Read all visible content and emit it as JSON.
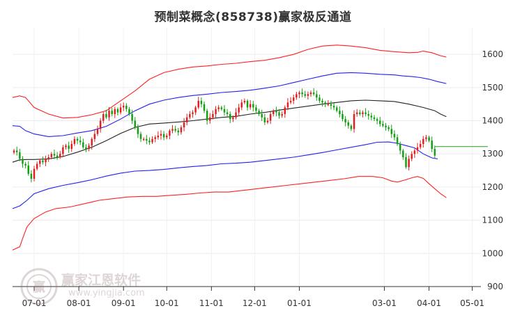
{
  "chart_data": {
    "type": "candlestick",
    "title": "预制菜概念(858738)赢家极反通道",
    "ylim": [
      900,
      1680
    ],
    "y_ticks": [
      900,
      1000,
      1100,
      1200,
      1300,
      1400,
      1500,
      1600
    ],
    "x_ticks": [
      "07-01",
      "08-01",
      "09-01",
      "10-01",
      "11-01",
      "12-01",
      "01-01",
      "03-01",
      "04-01",
      "05-01"
    ],
    "x_tick_days": [
      0,
      31,
      62,
      92,
      123,
      153,
      184,
      243,
      274,
      304
    ],
    "x_range_days": [
      -15,
      310
    ],
    "grid": true,
    "last_value": 1322,
    "colors": {
      "up": "#e02020",
      "down": "#12a012",
      "outer_band": "#ff2020",
      "inner_band": "#2020ee",
      "middle": "#222222",
      "last_line": "#20a020"
    },
    "candles": [
      [
        -14,
        1310
      ],
      [
        -12,
        1305
      ],
      [
        -10,
        1285
      ],
      [
        -8,
        1270
      ],
      [
        -6,
        1265
      ],
      [
        -4,
        1240
      ],
      [
        -2,
        1225
      ],
      [
        0,
        1255
      ],
      [
        2,
        1270
      ],
      [
        4,
        1280
      ],
      [
        6,
        1275
      ],
      [
        8,
        1285
      ],
      [
        10,
        1290
      ],
      [
        12,
        1300
      ],
      [
        14,
        1295
      ],
      [
        16,
        1290
      ],
      [
        18,
        1300
      ],
      [
        20,
        1320
      ],
      [
        22,
        1325
      ],
      [
        24,
        1315
      ],
      [
        26,
        1330
      ],
      [
        28,
        1345
      ],
      [
        30,
        1340
      ],
      [
        32,
        1335
      ],
      [
        34,
        1320
      ],
      [
        36,
        1315
      ],
      [
        38,
        1325
      ],
      [
        40,
        1345
      ],
      [
        42,
        1360
      ],
      [
        44,
        1375
      ],
      [
        46,
        1400
      ],
      [
        48,
        1420
      ],
      [
        50,
        1410
      ],
      [
        52,
        1430
      ],
      [
        54,
        1420
      ],
      [
        56,
        1435
      ],
      [
        58,
        1425
      ],
      [
        60,
        1440
      ],
      [
        62,
        1445
      ],
      [
        64,
        1435
      ],
      [
        66,
        1420
      ],
      [
        68,
        1400
      ],
      [
        70,
        1380
      ],
      [
        72,
        1360
      ],
      [
        74,
        1345
      ],
      [
        76,
        1345
      ],
      [
        78,
        1340
      ],
      [
        80,
        1335
      ],
      [
        82,
        1345
      ],
      [
        84,
        1350
      ],
      [
        86,
        1355
      ],
      [
        88,
        1360
      ],
      [
        90,
        1350
      ],
      [
        92,
        1355
      ],
      [
        94,
        1370
      ],
      [
        96,
        1375
      ],
      [
        98,
        1370
      ],
      [
        100,
        1365
      ],
      [
        102,
        1380
      ],
      [
        104,
        1395
      ],
      [
        106,
        1410
      ],
      [
        108,
        1420
      ],
      [
        110,
        1425
      ],
      [
        112,
        1440
      ],
      [
        114,
        1460
      ],
      [
        116,
        1450
      ],
      [
        118,
        1430
      ],
      [
        120,
        1400
      ],
      [
        122,
        1410
      ],
      [
        124,
        1420
      ],
      [
        126,
        1435
      ],
      [
        128,
        1440
      ],
      [
        130,
        1435
      ],
      [
        132,
        1425
      ],
      [
        134,
        1420
      ],
      [
        136,
        1405
      ],
      [
        138,
        1410
      ],
      [
        140,
        1425
      ],
      [
        142,
        1440
      ],
      [
        144,
        1455
      ],
      [
        146,
        1460
      ],
      [
        148,
        1440
      ],
      [
        150,
        1450
      ],
      [
        152,
        1440
      ],
      [
        154,
        1430
      ],
      [
        156,
        1420
      ],
      [
        158,
        1410
      ],
      [
        160,
        1395
      ],
      [
        162,
        1400
      ],
      [
        164,
        1420
      ],
      [
        166,
        1430
      ],
      [
        168,
        1425
      ],
      [
        170,
        1415
      ],
      [
        172,
        1420
      ],
      [
        174,
        1440
      ],
      [
        176,
        1455
      ],
      [
        178,
        1460
      ],
      [
        180,
        1470
      ],
      [
        182,
        1480
      ],
      [
        184,
        1485
      ],
      [
        186,
        1480
      ],
      [
        188,
        1475
      ],
      [
        190,
        1480
      ],
      [
        192,
        1485
      ],
      [
        194,
        1480
      ],
      [
        196,
        1470
      ],
      [
        198,
        1460
      ],
      [
        200,
        1455
      ],
      [
        202,
        1450
      ],
      [
        204,
        1450
      ],
      [
        206,
        1445
      ],
      [
        208,
        1440
      ],
      [
        210,
        1430
      ],
      [
        212,
        1420
      ],
      [
        214,
        1405
      ],
      [
        216,
        1395
      ],
      [
        218,
        1385
      ],
      [
        220,
        1375
      ],
      [
        222,
        1420
      ],
      [
        224,
        1425
      ],
      [
        226,
        1420
      ],
      [
        228,
        1425
      ],
      [
        230,
        1420
      ],
      [
        232,
        1415
      ],
      [
        234,
        1410
      ],
      [
        236,
        1405
      ],
      [
        238,
        1400
      ],
      [
        240,
        1390
      ],
      [
        242,
        1385
      ],
      [
        244,
        1380
      ],
      [
        246,
        1375
      ],
      [
        248,
        1360
      ],
      [
        250,
        1350
      ],
      [
        252,
        1330
      ],
      [
        254,
        1310
      ],
      [
        256,
        1290
      ],
      [
        258,
        1260
      ],
      [
        260,
        1285
      ],
      [
        262,
        1300
      ],
      [
        264,
        1310
      ],
      [
        266,
        1320
      ],
      [
        268,
        1330
      ],
      [
        270,
        1345
      ],
      [
        272,
        1350
      ],
      [
        274,
        1340
      ],
      [
        276,
        1315
      ],
      [
        278,
        1295
      ]
    ],
    "series": [
      {
        "name": "",
        "color": "#ff2020",
        "points": [
          [
            -15,
            1010
          ],
          [
            -10,
            1020
          ],
          [
            -8,
            1045
          ],
          [
            -5,
            1080
          ],
          [
            0,
            1105
          ],
          [
            8,
            1125
          ],
          [
            15,
            1135
          ],
          [
            25,
            1140
          ],
          [
            35,
            1150
          ],
          [
            45,
            1160
          ],
          [
            55,
            1165
          ],
          [
            65,
            1170
          ],
          [
            75,
            1172
          ],
          [
            85,
            1172
          ],
          [
            95,
            1175
          ],
          [
            105,
            1178
          ],
          [
            115,
            1182
          ],
          [
            125,
            1185
          ],
          [
            135,
            1185
          ],
          [
            145,
            1190
          ],
          [
            155,
            1195
          ],
          [
            165,
            1200
          ],
          [
            175,
            1205
          ],
          [
            185,
            1210
          ],
          [
            195,
            1215
          ],
          [
            205,
            1220
          ],
          [
            215,
            1225
          ],
          [
            225,
            1232
          ],
          [
            235,
            1232
          ],
          [
            242,
            1228
          ],
          [
            248,
            1218
          ],
          [
            252,
            1215
          ],
          [
            258,
            1222
          ],
          [
            262,
            1228
          ],
          [
            266,
            1232
          ],
          [
            270,
            1226
          ],
          [
            274,
            1210
          ],
          [
            278,
            1195
          ],
          [
            282,
            1180
          ],
          [
            286,
            1168
          ]
        ]
      },
      {
        "name": "",
        "color": "#2020ee",
        "points": [
          [
            -15,
            1135
          ],
          [
            -10,
            1143
          ],
          [
            -5,
            1160
          ],
          [
            0,
            1180
          ],
          [
            10,
            1195
          ],
          [
            20,
            1205
          ],
          [
            30,
            1213
          ],
          [
            40,
            1222
          ],
          [
            50,
            1233
          ],
          [
            60,
            1242
          ],
          [
            70,
            1248
          ],
          [
            80,
            1250
          ],
          [
            90,
            1253
          ],
          [
            100,
            1258
          ],
          [
            110,
            1262
          ],
          [
            120,
            1265
          ],
          [
            130,
            1270
          ],
          [
            140,
            1272
          ],
          [
            150,
            1275
          ],
          [
            160,
            1280
          ],
          [
            170,
            1285
          ],
          [
            180,
            1290
          ],
          [
            190,
            1297
          ],
          [
            200,
            1304
          ],
          [
            210,
            1312
          ],
          [
            220,
            1320
          ],
          [
            230,
            1328
          ],
          [
            238,
            1335
          ],
          [
            246,
            1336
          ],
          [
            252,
            1332
          ],
          [
            258,
            1325
          ],
          [
            264,
            1318
          ],
          [
            270,
            1300
          ],
          [
            276,
            1288
          ],
          [
            280,
            1285
          ]
        ]
      },
      {
        "name": "",
        "color": "#222222",
        "points": [
          [
            -15,
            1275
          ],
          [
            -10,
            1282
          ],
          [
            -5,
            1283
          ],
          [
            0,
            1283
          ],
          [
            10,
            1285
          ],
          [
            20,
            1292
          ],
          [
            30,
            1305
          ],
          [
            40,
            1320
          ],
          [
            50,
            1340
          ],
          [
            60,
            1362
          ],
          [
            70,
            1380
          ],
          [
            80,
            1390
          ],
          [
            90,
            1393
          ],
          [
            100,
            1396
          ],
          [
            110,
            1400
          ],
          [
            120,
            1405
          ],
          [
            130,
            1410
          ],
          [
            140,
            1413
          ],
          [
            150,
            1420
          ],
          [
            160,
            1425
          ],
          [
            170,
            1432
          ],
          [
            180,
            1438
          ],
          [
            190,
            1444
          ],
          [
            200,
            1450
          ],
          [
            210,
            1455
          ],
          [
            220,
            1460
          ],
          [
            230,
            1462
          ],
          [
            240,
            1460
          ],
          [
            250,
            1458
          ],
          [
            260,
            1450
          ],
          [
            270,
            1440
          ],
          [
            278,
            1430
          ],
          [
            282,
            1420
          ],
          [
            286,
            1412
          ]
        ]
      },
      {
        "name": "",
        "color": "#2020ee",
        "points": [
          [
            -15,
            1385
          ],
          [
            -10,
            1383
          ],
          [
            -6,
            1370
          ],
          [
            0,
            1360
          ],
          [
            10,
            1352
          ],
          [
            20,
            1355
          ],
          [
            30,
            1363
          ],
          [
            40,
            1370
          ],
          [
            50,
            1383
          ],
          [
            60,
            1405
          ],
          [
            70,
            1430
          ],
          [
            80,
            1450
          ],
          [
            90,
            1462
          ],
          [
            100,
            1470
          ],
          [
            110,
            1476
          ],
          [
            120,
            1480
          ],
          [
            130,
            1485
          ],
          [
            140,
            1488
          ],
          [
            150,
            1492
          ],
          [
            160,
            1498
          ],
          [
            170,
            1505
          ],
          [
            180,
            1515
          ],
          [
            190,
            1525
          ],
          [
            200,
            1535
          ],
          [
            210,
            1543
          ],
          [
            220,
            1545
          ],
          [
            230,
            1543
          ],
          [
            240,
            1540
          ],
          [
            250,
            1538
          ],
          [
            256,
            1535
          ],
          [
            262,
            1533
          ],
          [
            268,
            1530
          ],
          [
            274,
            1525
          ],
          [
            280,
            1518
          ],
          [
            286,
            1512
          ]
        ]
      },
      {
        "name": "",
        "color": "#ff2020",
        "points": [
          [
            -15,
            1470
          ],
          [
            -10,
            1475
          ],
          [
            -6,
            1470
          ],
          [
            0,
            1440
          ],
          [
            10,
            1420
          ],
          [
            20,
            1408
          ],
          [
            30,
            1410
          ],
          [
            40,
            1418
          ],
          [
            50,
            1430
          ],
          [
            60,
            1460
          ],
          [
            70,
            1490
          ],
          [
            80,
            1525
          ],
          [
            90,
            1545
          ],
          [
            100,
            1555
          ],
          [
            110,
            1562
          ],
          [
            120,
            1565
          ],
          [
            130,
            1570
          ],
          [
            140,
            1573
          ],
          [
            150,
            1578
          ],
          [
            160,
            1582
          ],
          [
            170,
            1590
          ],
          [
            180,
            1600
          ],
          [
            190,
            1615
          ],
          [
            200,
            1625
          ],
          [
            210,
            1628
          ],
          [
            220,
            1625
          ],
          [
            230,
            1620
          ],
          [
            240,
            1612
          ],
          [
            250,
            1608
          ],
          [
            260,
            1605
          ],
          [
            266,
            1606
          ],
          [
            270,
            1610
          ],
          [
            276,
            1605
          ],
          [
            282,
            1596
          ],
          [
            286,
            1592
          ]
        ]
      }
    ]
  },
  "watermark": {
    "text1": "赢家江恩软件",
    "text2": "www.yingjia.com"
  }
}
